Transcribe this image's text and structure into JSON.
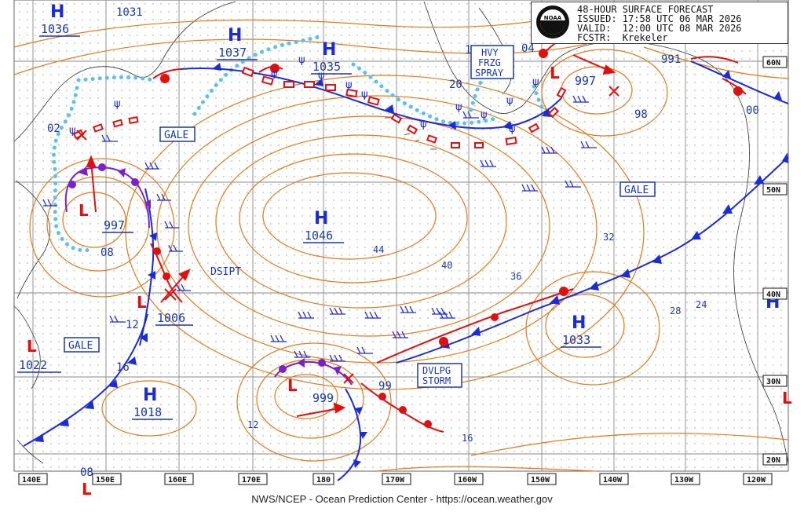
{
  "header": {
    "title": "48-HOUR SURFACE FORECAST",
    "issued": "ISSUED: 17:58 UTC 06 MAR 2026",
    "valid": "VALID:  12:00 UTC 08 MAR 2026",
    "forecaster": "FCSTR:  Krekeler",
    "logo_text": "NOAA"
  },
  "footer": "NWS/NCEP - Ocean Prediction Center - https://ocean.weather.gov",
  "lon_labels": [
    "140E",
    "150E",
    "160E",
    "170E",
    "180",
    "170W",
    "160W",
    "150W",
    "140W",
    "130W",
    "120W"
  ],
  "lat_labels": [
    "60N",
    "50N",
    "40N",
    "30N",
    "20N"
  ],
  "highs": [
    {
      "label": "H",
      "value": "1036"
    },
    {
      "label": "H",
      "value": "1037"
    },
    {
      "label": "H",
      "value": "1035"
    },
    {
      "label": "H",
      "value": "1046"
    },
    {
      "label": "H",
      "value": "1033"
    },
    {
      "label": "H",
      "value": "1018"
    },
    {
      "label": "H",
      "value": ""
    }
  ],
  "lows": [
    {
      "label": "L",
      "value": "997"
    },
    {
      "label": "L",
      "value": "1006"
    },
    {
      "label": "L",
      "value": "1022"
    },
    {
      "label": "L",
      "value": "999"
    },
    {
      "label": "L",
      "value": "997"
    },
    {
      "label": "L",
      "value": ""
    },
    {
      "label": "L",
      "value": ""
    }
  ],
  "stray_values": [
    "1031",
    "991",
    "98",
    "00",
    "02",
    "08",
    "12",
    "16",
    "20",
    "04",
    "1",
    "99",
    "08"
  ],
  "isobar_values": [
    "44",
    "40",
    "36",
    "32",
    "28",
    "24",
    "16",
    "12"
  ],
  "warnings": [
    "GALE",
    "GALE",
    "GALE",
    "DSIPT"
  ],
  "boxed_warnings": {
    "spray": [
      "HVY",
      "FRZG",
      "SPRAY"
    ],
    "storm": [
      "DVLPG",
      "STORM"
    ]
  },
  "colors": {
    "isobar": "#e07b1a",
    "cold_front": "#1a2bd8",
    "warm_front": "#e01010",
    "ice": "#5bc0eb",
    "grid": "#888888",
    "label": "#1a3aa8"
  }
}
